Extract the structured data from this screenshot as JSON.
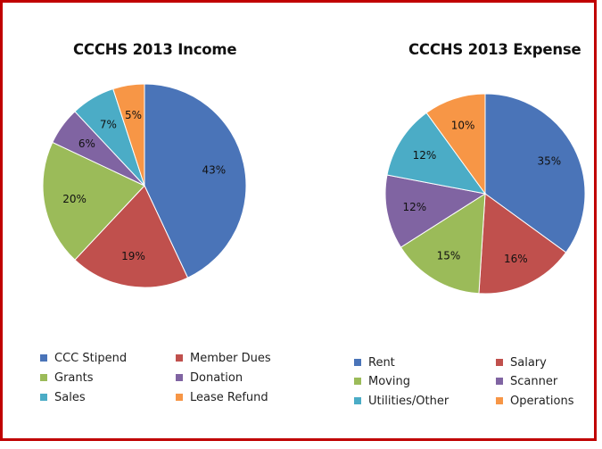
{
  "chart_data": [
    {
      "type": "pie",
      "title": "CCCHS 2013 Income",
      "categories": [
        "CCC Stipend",
        "Member Dues",
        "Grants",
        "Donation",
        "Sales",
        "Lease Refund"
      ],
      "values": [
        43,
        19,
        20,
        6,
        7,
        5
      ],
      "labels": [
        "43%",
        "19%",
        "20%",
        "6%",
        "7%",
        "5%"
      ],
      "colors": [
        "#4a74b8",
        "#c0504d",
        "#9bbb59",
        "#8064a2",
        "#4bacc6",
        "#f79646"
      ],
      "legend_position": "bottom"
    },
    {
      "type": "pie",
      "title": "CCCHS 2013 Expense",
      "categories": [
        "Rent",
        "Salary",
        "Moving",
        "Scanner",
        "Utilities/Other",
        "Operations"
      ],
      "values": [
        35,
        16,
        15,
        12,
        12,
        10
      ],
      "labels": [
        "35%",
        "16%",
        "15%",
        "12%",
        "12%",
        "10%"
      ],
      "colors": [
        "#4a74b8",
        "#c0504d",
        "#9bbb59",
        "#8064a2",
        "#4bacc6",
        "#f79646"
      ],
      "legend_position": "bottom"
    }
  ]
}
